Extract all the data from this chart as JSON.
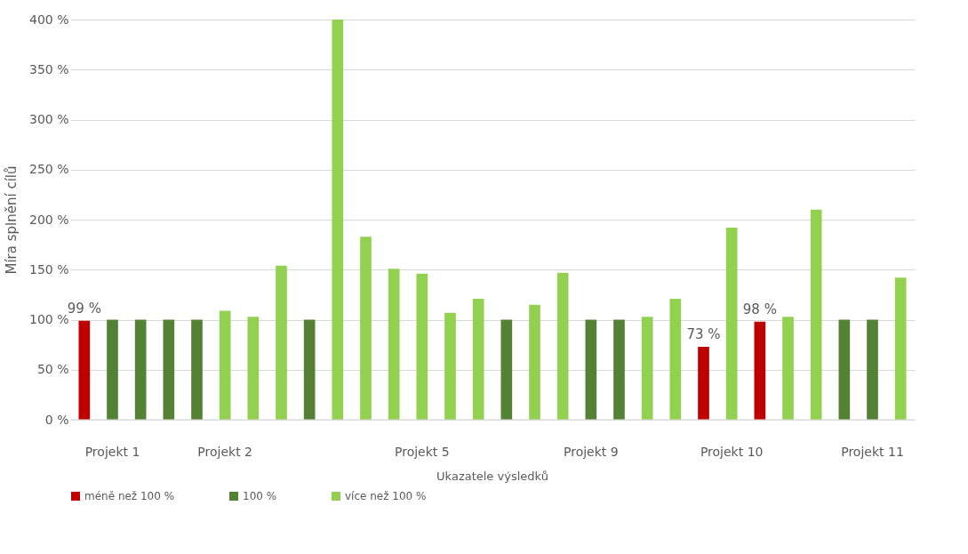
{
  "chart_data": {
    "type": "bar",
    "xlabel": "Ukazatele výsledků",
    "ylabel": "Míra splnění cílů",
    "categories": [
      null,
      "Projekt 1",
      null,
      null,
      null,
      "Projekt 2",
      null,
      null,
      null,
      null,
      null,
      null,
      "Projekt 5",
      null,
      null,
      null,
      null,
      null,
      "Projekt 9",
      null,
      null,
      null,
      null,
      "Projekt 10",
      null,
      null,
      null,
      null,
      "Projekt 11",
      null
    ],
    "series": [
      {
        "name": "méně než 100 %",
        "color": "#c00000",
        "values": [
          99,
          null,
          null,
          null,
          null,
          null,
          null,
          null,
          null,
          null,
          null,
          null,
          null,
          null,
          null,
          null,
          null,
          null,
          null,
          null,
          null,
          null,
          73,
          null,
          98,
          null,
          null,
          null,
          null,
          null
        ],
        "value_labels": [
          "99 %",
          null,
          null,
          null,
          null,
          null,
          null,
          null,
          null,
          null,
          null,
          null,
          null,
          null,
          null,
          null,
          null,
          null,
          null,
          null,
          null,
          null,
          "73 %",
          null,
          "98 %",
          null,
          null,
          null,
          null,
          null
        ]
      },
      {
        "name": "100 %",
        "color": "#548235",
        "values": [
          null,
          100,
          100,
          100,
          100,
          null,
          null,
          null,
          100,
          null,
          null,
          null,
          null,
          null,
          null,
          100,
          null,
          null,
          100,
          100,
          null,
          null,
          null,
          null,
          null,
          null,
          null,
          100,
          100,
          null
        ]
      },
      {
        "name": "více než 100 %",
        "color": "#92d050",
        "values": [
          null,
          null,
          null,
          null,
          null,
          109,
          103,
          154,
          null,
          400,
          183,
          151,
          146,
          107,
          121,
          null,
          115,
          147,
          null,
          null,
          103,
          121,
          null,
          192,
          null,
          103,
          210,
          null,
          null,
          142
        ]
      }
    ],
    "ylim": [
      0,
      400
    ],
    "yticks": [
      {
        "value": 0,
        "label": "0 %"
      },
      {
        "value": 50,
        "label": "50 %"
      },
      {
        "value": 100,
        "label": "100 %"
      },
      {
        "value": 150,
        "label": "150 %"
      },
      {
        "value": 200,
        "label": "200 %"
      },
      {
        "value": 250,
        "label": "250 %"
      },
      {
        "value": 300,
        "label": "300 %"
      },
      {
        "value": 350,
        "label": "350 %"
      },
      {
        "value": 400,
        "label": "400 %"
      }
    ],
    "grid": "y",
    "legend": "bottom"
  }
}
